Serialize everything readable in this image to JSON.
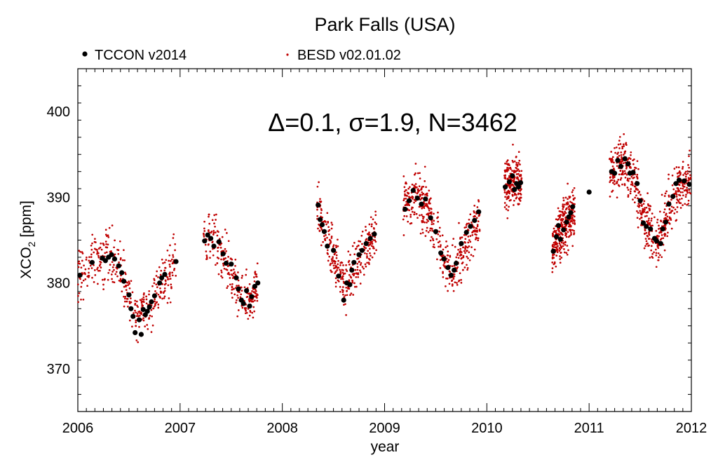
{
  "chart_data": {
    "type": "scatter",
    "title": "Park Falls (USA)",
    "annotation": "Δ=0.1, σ=1.9, N=3462",
    "xlabel": "year",
    "ylabel_main": "XCO",
    "ylabel_sub": "2",
    "ylabel_unit": " [ppm]",
    "xlim": [
      2006,
      2012
    ],
    "ylim": [
      365,
      405
    ],
    "x_ticks": [
      2006,
      2007,
      2008,
      2009,
      2010,
      2011,
      2012
    ],
    "x_tick_labels": [
      "2006",
      "2007",
      "2008",
      "2009",
      "2010",
      "2011",
      "2012"
    ],
    "y_ticks": [
      370,
      380,
      390,
      400
    ],
    "y_tick_labels": [
      "370",
      "380",
      "390",
      "400"
    ],
    "grid": false,
    "legend_position": "top-left",
    "series": [
      {
        "name": "TCCON v2014",
        "color": "#000000",
        "marker": "large-dot",
        "points": [
          [
            2006.02,
            380.9
          ],
          [
            2006.14,
            382.4
          ],
          [
            2006.24,
            382.9
          ],
          [
            2006.27,
            382.6
          ],
          [
            2006.3,
            383.0
          ],
          [
            2006.33,
            383.3
          ],
          [
            2006.36,
            382.8
          ],
          [
            2006.4,
            382.0
          ],
          [
            2006.43,
            381.2
          ],
          [
            2006.45,
            380.2
          ],
          [
            2006.5,
            378.6
          ],
          [
            2006.52,
            377.0
          ],
          [
            2006.54,
            376.1
          ],
          [
            2006.56,
            374.2
          ],
          [
            2006.6,
            375.7
          ],
          [
            2006.62,
            374.0
          ],
          [
            2006.64,
            376.9
          ],
          [
            2006.66,
            376.3
          ],
          [
            2006.68,
            376.7
          ],
          [
            2006.7,
            377.2
          ],
          [
            2006.72,
            377.8
          ],
          [
            2006.75,
            378.5
          ],
          [
            2006.8,
            380.0
          ],
          [
            2006.82,
            380.6
          ],
          [
            2006.85,
            381.0
          ],
          [
            2006.96,
            382.5
          ],
          [
            2007.24,
            384.9
          ],
          [
            2007.27,
            385.6
          ],
          [
            2007.3,
            385.2
          ],
          [
            2007.33,
            384.3
          ],
          [
            2007.38,
            384.8
          ],
          [
            2007.42,
            383.4
          ],
          [
            2007.45,
            382.3
          ],
          [
            2007.5,
            382.2
          ],
          [
            2007.55,
            380.6
          ],
          [
            2007.57,
            379.3
          ],
          [
            2007.6,
            378.0
          ],
          [
            2007.62,
            377.6
          ],
          [
            2007.65,
            379.1
          ],
          [
            2007.68,
            377.3
          ],
          [
            2007.7,
            378.4
          ],
          [
            2007.73,
            379.6
          ],
          [
            2007.76,
            380.0
          ],
          [
            2008.35,
            389.1
          ],
          [
            2008.37,
            387.4
          ],
          [
            2008.39,
            386.8
          ],
          [
            2008.41,
            386.0
          ],
          [
            2008.44,
            384.3
          ],
          [
            2008.5,
            383.8
          ],
          [
            2008.55,
            380.8
          ],
          [
            2008.6,
            378.0
          ],
          [
            2008.63,
            380.0
          ],
          [
            2008.66,
            379.8
          ],
          [
            2008.68,
            381.5
          ],
          [
            2008.7,
            382.4
          ],
          [
            2008.75,
            383.3
          ],
          [
            2008.78,
            383.8
          ],
          [
            2008.82,
            384.6
          ],
          [
            2008.86,
            385.2
          ],
          [
            2008.9,
            385.7
          ],
          [
            2009.2,
            388.6
          ],
          [
            2009.24,
            389.6
          ],
          [
            2009.28,
            390.8
          ],
          [
            2009.32,
            389.9
          ],
          [
            2009.36,
            389.2
          ],
          [
            2009.4,
            389.8
          ],
          [
            2009.45,
            387.6
          ],
          [
            2009.5,
            386.0
          ],
          [
            2009.55,
            383.5
          ],
          [
            2009.58,
            382.8
          ],
          [
            2009.62,
            381.8
          ],
          [
            2009.65,
            380.9
          ],
          [
            2009.68,
            381.5
          ],
          [
            2009.7,
            382.3
          ],
          [
            2009.75,
            384.6
          ],
          [
            2009.8,
            385.9
          ],
          [
            2009.84,
            386.6
          ],
          [
            2009.88,
            387.3
          ],
          [
            2009.92,
            388.3
          ],
          [
            2010.18,
            391.2
          ],
          [
            2010.22,
            391.8
          ],
          [
            2010.25,
            392.5
          ],
          [
            2010.27,
            390.9
          ],
          [
            2010.29,
            391.6
          ],
          [
            2010.31,
            391.2
          ],
          [
            2010.33,
            391.7
          ],
          [
            2010.65,
            383.7
          ],
          [
            2010.68,
            385.4
          ],
          [
            2010.7,
            386.7
          ],
          [
            2010.72,
            385.1
          ],
          [
            2010.75,
            386.2
          ],
          [
            2010.78,
            387.1
          ],
          [
            2010.8,
            387.7
          ],
          [
            2010.82,
            388.2
          ],
          [
            2010.84,
            388.9
          ],
          [
            2011.0,
            390.6
          ],
          [
            2011.22,
            393.0
          ],
          [
            2011.25,
            392.8
          ],
          [
            2011.28,
            394.3
          ],
          [
            2011.31,
            393.6
          ],
          [
            2011.35,
            394.5
          ],
          [
            2011.38,
            393.9
          ],
          [
            2011.4,
            392.8
          ],
          [
            2011.43,
            392.9
          ],
          [
            2011.47,
            391.6
          ],
          [
            2011.5,
            389.6
          ],
          [
            2011.53,
            387.0
          ],
          [
            2011.56,
            386.6
          ],
          [
            2011.6,
            386.3
          ],
          [
            2011.64,
            385.2
          ],
          [
            2011.66,
            384.9
          ],
          [
            2011.7,
            384.6
          ],
          [
            2011.72,
            386.3
          ],
          [
            2011.75,
            387.1
          ],
          [
            2011.78,
            389.2
          ],
          [
            2011.82,
            390.1
          ],
          [
            2011.85,
            391.6
          ],
          [
            2011.88,
            392.0
          ],
          [
            2011.93,
            391.9
          ],
          [
            2011.98,
            391.5
          ]
        ]
      },
      {
        "name": "BESD v02.01.02",
        "color": "#c00000",
        "marker": "small-dot",
        "segments": [
          {
            "x": [
              2006.0,
              2006.96
            ],
            "tck": [
              [
                2006.0,
                381
              ],
              [
                2006.14,
                382.4
              ],
              [
                2006.3,
                383
              ],
              [
                2006.4,
                382
              ],
              [
                2006.55,
                376.5
              ],
              [
                2006.65,
                376.5
              ],
              [
                2006.8,
                380
              ],
              [
                2006.96,
                382.5
              ]
            ],
            "spread": 2.6,
            "n": 380
          },
          {
            "x": [
              2007.23,
              2007.76
            ],
            "tck": [
              [
                2007.23,
                385
              ],
              [
                2007.33,
                385
              ],
              [
                2007.45,
                382.5
              ],
              [
                2007.6,
                378
              ],
              [
                2007.7,
                378.5
              ],
              [
                2007.76,
                380
              ]
            ],
            "spread": 2.4,
            "n": 260
          },
          {
            "x": [
              2008.34,
              2008.92
            ],
            "tck": [
              [
                2008.34,
                388.8
              ],
              [
                2008.42,
                386
              ],
              [
                2008.55,
                381.5
              ],
              [
                2008.62,
                379.5
              ],
              [
                2008.75,
                383
              ],
              [
                2008.92,
                385.8
              ]
            ],
            "spread": 2.4,
            "n": 310
          },
          {
            "x": [
              2009.18,
              2009.93
            ],
            "tck": [
              [
                2009.18,
                389
              ],
              [
                2009.3,
                390.2
              ],
              [
                2009.42,
                389
              ],
              [
                2009.55,
                384
              ],
              [
                2009.65,
                381
              ],
              [
                2009.75,
                383.5
              ],
              [
                2009.93,
                387.5
              ]
            ],
            "spread": 2.5,
            "n": 430
          },
          {
            "x": [
              2010.17,
              2010.34
            ],
            "tck": [
              [
                2010.17,
                391
              ],
              [
                2010.25,
                392
              ],
              [
                2010.34,
                391.5
              ]
            ],
            "spread": 2.5,
            "n": 200
          },
          {
            "x": [
              2010.64,
              2010.86
            ],
            "tck": [
              [
                2010.64,
                384
              ],
              [
                2010.75,
                386.5
              ],
              [
                2010.86,
                388.5
              ]
            ],
            "spread": 2.6,
            "n": 300
          },
          {
            "x": [
              2011.2,
              2012.0
            ],
            "tck": [
              [
                2011.2,
                393
              ],
              [
                2011.35,
                394
              ],
              [
                2011.45,
                392
              ],
              [
                2011.55,
                387
              ],
              [
                2011.68,
                385
              ],
              [
                2011.8,
                389
              ],
              [
                2011.9,
                391.5
              ],
              [
                2012.0,
                392
              ]
            ],
            "spread": 2.6,
            "n": 560
          }
        ]
      }
    ]
  }
}
